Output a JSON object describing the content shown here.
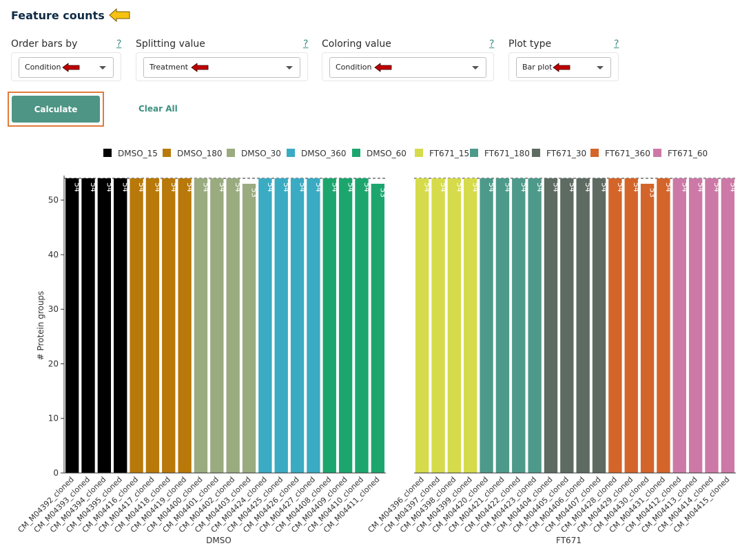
{
  "header": {
    "title": "Feature counts"
  },
  "controls": [
    {
      "label": "Order bars by",
      "value": "Condition",
      "help": "?"
    },
    {
      "label": "Splitting value",
      "value": "Treatment",
      "help": "?"
    },
    {
      "label": "Coloring value",
      "value": "Condition",
      "help": "?"
    },
    {
      "label": "Plot type",
      "value": "Bar plot",
      "help": "?"
    }
  ],
  "buttons": {
    "calculate": "Calculate",
    "clear": "Clear All"
  },
  "colors": {
    "accent": "#4e9585",
    "highlight": "#e07b39",
    "arrow_red": "#c00000",
    "arrow_yellow": "#f5c211"
  },
  "chart_data": {
    "type": "bar",
    "ylabel": "# Protein groups",
    "ylim": [
      0,
      54
    ],
    "yticks": [
      0,
      10,
      20,
      30,
      40,
      50
    ],
    "reference_line": 54,
    "legend": [
      {
        "name": "DMSO_15",
        "color": "#000000"
      },
      {
        "name": "DMSO_180",
        "color": "#b8790a"
      },
      {
        "name": "DMSO_30",
        "color": "#9aab80"
      },
      {
        "name": "DMSO_360",
        "color": "#3aabc3"
      },
      {
        "name": "DMSO_60",
        "color": "#1ca66e"
      },
      {
        "name": "FT671_15",
        "color": "#d5db4a"
      },
      {
        "name": "FT671_180",
        "color": "#4e9a8a"
      },
      {
        "name": "FT671_30",
        "color": "#5e6b62"
      },
      {
        "name": "FT671_360",
        "color": "#d4652a"
      },
      {
        "name": "FT671_60",
        "color": "#cc79a7"
      }
    ],
    "panels": [
      {
        "xlabel": "DMSO",
        "bars": [
          {
            "category": "CM_M04392_cloned",
            "value": 54,
            "group": "DMSO_15"
          },
          {
            "category": "CM_M04393_cloned",
            "value": 54,
            "group": "DMSO_15"
          },
          {
            "category": "CM_M04394_cloned",
            "value": 54,
            "group": "DMSO_15"
          },
          {
            "category": "CM_M04395_cloned",
            "value": 54,
            "group": "DMSO_15"
          },
          {
            "category": "CM_M04416_cloned",
            "value": 54,
            "group": "DMSO_180"
          },
          {
            "category": "CM_M04417_cloned",
            "value": 54,
            "group": "DMSO_180"
          },
          {
            "category": "CM_M04418_cloned",
            "value": 54,
            "group": "DMSO_180"
          },
          {
            "category": "CM_M04419_cloned",
            "value": 54,
            "group": "DMSO_180"
          },
          {
            "category": "CM_M04400_cloned",
            "value": 54,
            "group": "DMSO_30"
          },
          {
            "category": "CM_M04401_cloned",
            "value": 54,
            "group": "DMSO_30"
          },
          {
            "category": "CM_M04402_cloned",
            "value": 54,
            "group": "DMSO_30"
          },
          {
            "category": "CM_M04403_cloned",
            "value": 53,
            "group": "DMSO_30"
          },
          {
            "category": "CM_M04424_cloned",
            "value": 54,
            "group": "DMSO_360"
          },
          {
            "category": "CM_M04425_cloned",
            "value": 54,
            "group": "DMSO_360"
          },
          {
            "category": "CM_M04426_cloned",
            "value": 54,
            "group": "DMSO_360"
          },
          {
            "category": "CM_M04427_cloned",
            "value": 54,
            "group": "DMSO_360"
          },
          {
            "category": "CM_M04408_cloned",
            "value": 54,
            "group": "DMSO_60"
          },
          {
            "category": "CM_M04409_cloned",
            "value": 54,
            "group": "DMSO_60"
          },
          {
            "category": "CM_M04410_cloned",
            "value": 54,
            "group": "DMSO_60"
          },
          {
            "category": "CM_M04411_cloned",
            "value": 53,
            "group": "DMSO_60"
          }
        ]
      },
      {
        "xlabel": "FT671",
        "bars": [
          {
            "category": "CM_M04396_cloned",
            "value": 54,
            "group": "FT671_15"
          },
          {
            "category": "CM_M04397_cloned",
            "value": 54,
            "group": "FT671_15"
          },
          {
            "category": "CM_M04398_cloned",
            "value": 54,
            "group": "FT671_15"
          },
          {
            "category": "CM_M04399_cloned",
            "value": 54,
            "group": "FT671_15"
          },
          {
            "category": "CM_M04420_cloned",
            "value": 54,
            "group": "FT671_180"
          },
          {
            "category": "CM_M04421_cloned",
            "value": 54,
            "group": "FT671_180"
          },
          {
            "category": "CM_M04422_cloned",
            "value": 54,
            "group": "FT671_180"
          },
          {
            "category": "CM_M04423_cloned",
            "value": 54,
            "group": "FT671_180"
          },
          {
            "category": "CM_M04404_cloned",
            "value": 54,
            "group": "FT671_30"
          },
          {
            "category": "CM_M04405_cloned",
            "value": 54,
            "group": "FT671_30"
          },
          {
            "category": "CM_M04406_cloned",
            "value": 54,
            "group": "FT671_30"
          },
          {
            "category": "CM_M04407_cloned",
            "value": 54,
            "group": "FT671_30"
          },
          {
            "category": "CM_M04428_cloned",
            "value": 54,
            "group": "FT671_360"
          },
          {
            "category": "CM_M04429_cloned",
            "value": 54,
            "group": "FT671_360"
          },
          {
            "category": "CM_M04430_cloned",
            "value": 53,
            "group": "FT671_360"
          },
          {
            "category": "CM_M04431_cloned",
            "value": 54,
            "group": "FT671_360"
          },
          {
            "category": "CM_M04412_cloned",
            "value": 54,
            "group": "FT671_60"
          },
          {
            "category": "CM_M04413_cloned",
            "value": 54,
            "group": "FT671_60"
          },
          {
            "category": "CM_M04414_cloned",
            "value": 54,
            "group": "FT671_60"
          },
          {
            "category": "CM_M04415_cloned",
            "value": 54,
            "group": "FT671_60"
          }
        ]
      }
    ]
  }
}
